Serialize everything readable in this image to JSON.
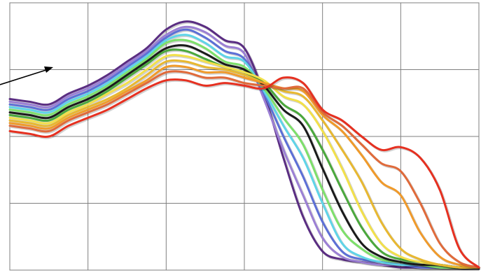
{
  "chart_data": {
    "type": "line",
    "title": "",
    "xlabel": "",
    "ylabel": "",
    "grid": true,
    "legend": "none",
    "xlim": [
      0,
      12
    ],
    "ylim": [
      0,
      1
    ],
    "x": [
      0,
      0.5,
      1,
      1.5,
      2,
      2.5,
      3,
      3.5,
      4,
      4.5,
      5,
      5.5,
      6,
      6.5,
      7,
      7.5,
      8,
      8.5,
      9,
      9.5,
      10,
      10.5,
      11,
      11.5,
      12
    ],
    "series": [
      {
        "color": "#5a2d82",
        "values": [
          0.64,
          0.63,
          0.62,
          0.66,
          0.69,
          0.73,
          0.78,
          0.83,
          0.9,
          0.93,
          0.91,
          0.86,
          0.83,
          0.66,
          0.42,
          0.2,
          0.07,
          0.04,
          0.03,
          0.02,
          0.01,
          0.01,
          0.01,
          0.01,
          0.01
        ]
      },
      {
        "color": "#9b7fd4",
        "values": [
          0.63,
          0.62,
          0.61,
          0.65,
          0.68,
          0.72,
          0.77,
          0.82,
          0.88,
          0.91,
          0.89,
          0.84,
          0.81,
          0.64,
          0.45,
          0.28,
          0.12,
          0.05,
          0.03,
          0.02,
          0.02,
          0.01,
          0.01,
          0.01,
          0.01
        ]
      },
      {
        "color": "#5c6fd6",
        "values": [
          0.62,
          0.61,
          0.6,
          0.64,
          0.67,
          0.71,
          0.76,
          0.81,
          0.87,
          0.9,
          0.87,
          0.82,
          0.79,
          0.66,
          0.5,
          0.35,
          0.18,
          0.07,
          0.04,
          0.03,
          0.02,
          0.01,
          0.01,
          0.01,
          0.01
        ]
      },
      {
        "color": "#5fd4e8",
        "values": [
          0.61,
          0.6,
          0.59,
          0.63,
          0.66,
          0.7,
          0.75,
          0.8,
          0.86,
          0.88,
          0.85,
          0.8,
          0.78,
          0.67,
          0.54,
          0.42,
          0.25,
          0.1,
          0.05,
          0.03,
          0.02,
          0.02,
          0.01,
          0.01,
          0.01
        ]
      },
      {
        "color": "#7de06a",
        "values": [
          0.6,
          0.59,
          0.58,
          0.62,
          0.65,
          0.69,
          0.74,
          0.79,
          0.85,
          0.86,
          0.83,
          0.78,
          0.76,
          0.68,
          0.57,
          0.47,
          0.3,
          0.15,
          0.08,
          0.04,
          0.03,
          0.02,
          0.01,
          0.01,
          0.01
        ]
      },
      {
        "color": "#1a1a1a",
        "values": [
          0.59,
          0.58,
          0.57,
          0.61,
          0.64,
          0.68,
          0.73,
          0.78,
          0.83,
          0.84,
          0.81,
          0.77,
          0.75,
          0.69,
          0.6,
          0.54,
          0.38,
          0.22,
          0.1,
          0.05,
          0.03,
          0.02,
          0.02,
          0.01,
          0.01
        ]
      },
      {
        "color": "#4aa83c",
        "values": [
          0.58,
          0.57,
          0.56,
          0.6,
          0.63,
          0.67,
          0.72,
          0.77,
          0.82,
          0.82,
          0.79,
          0.76,
          0.74,
          0.7,
          0.62,
          0.57,
          0.45,
          0.3,
          0.16,
          0.07,
          0.04,
          0.03,
          0.02,
          0.01,
          0.01
        ]
      },
      {
        "color": "#f2e04a",
        "values": [
          0.57,
          0.56,
          0.55,
          0.59,
          0.62,
          0.66,
          0.7,
          0.75,
          0.8,
          0.8,
          0.78,
          0.76,
          0.74,
          0.71,
          0.65,
          0.62,
          0.52,
          0.38,
          0.22,
          0.1,
          0.05,
          0.03,
          0.02,
          0.01,
          0.01
        ]
      },
      {
        "color": "#e8b830",
        "values": [
          0.56,
          0.55,
          0.54,
          0.58,
          0.61,
          0.64,
          0.68,
          0.73,
          0.78,
          0.78,
          0.76,
          0.75,
          0.73,
          0.7,
          0.67,
          0.65,
          0.56,
          0.45,
          0.33,
          0.18,
          0.08,
          0.04,
          0.02,
          0.01,
          0.01
        ]
      },
      {
        "color": "#f09a2a",
        "values": [
          0.55,
          0.54,
          0.53,
          0.57,
          0.6,
          0.63,
          0.67,
          0.71,
          0.76,
          0.76,
          0.74,
          0.74,
          0.72,
          0.7,
          0.68,
          0.67,
          0.58,
          0.52,
          0.43,
          0.33,
          0.28,
          0.14,
          0.05,
          0.02,
          0.01
        ]
      },
      {
        "color": "#e06a3a",
        "values": [
          0.54,
          0.53,
          0.52,
          0.56,
          0.59,
          0.62,
          0.66,
          0.7,
          0.74,
          0.74,
          0.72,
          0.72,
          0.7,
          0.69,
          0.68,
          0.68,
          0.59,
          0.54,
          0.47,
          0.4,
          0.37,
          0.25,
          0.1,
          0.03,
          0.01
        ]
      },
      {
        "color": "#e63020",
        "values": [
          0.52,
          0.51,
          0.5,
          0.54,
          0.57,
          0.6,
          0.64,
          0.68,
          0.71,
          0.71,
          0.69,
          0.7,
          0.69,
          0.68,
          0.72,
          0.7,
          0.6,
          0.56,
          0.5,
          0.45,
          0.46,
          0.42,
          0.3,
          0.08,
          0.01
        ]
      }
    ]
  }
}
